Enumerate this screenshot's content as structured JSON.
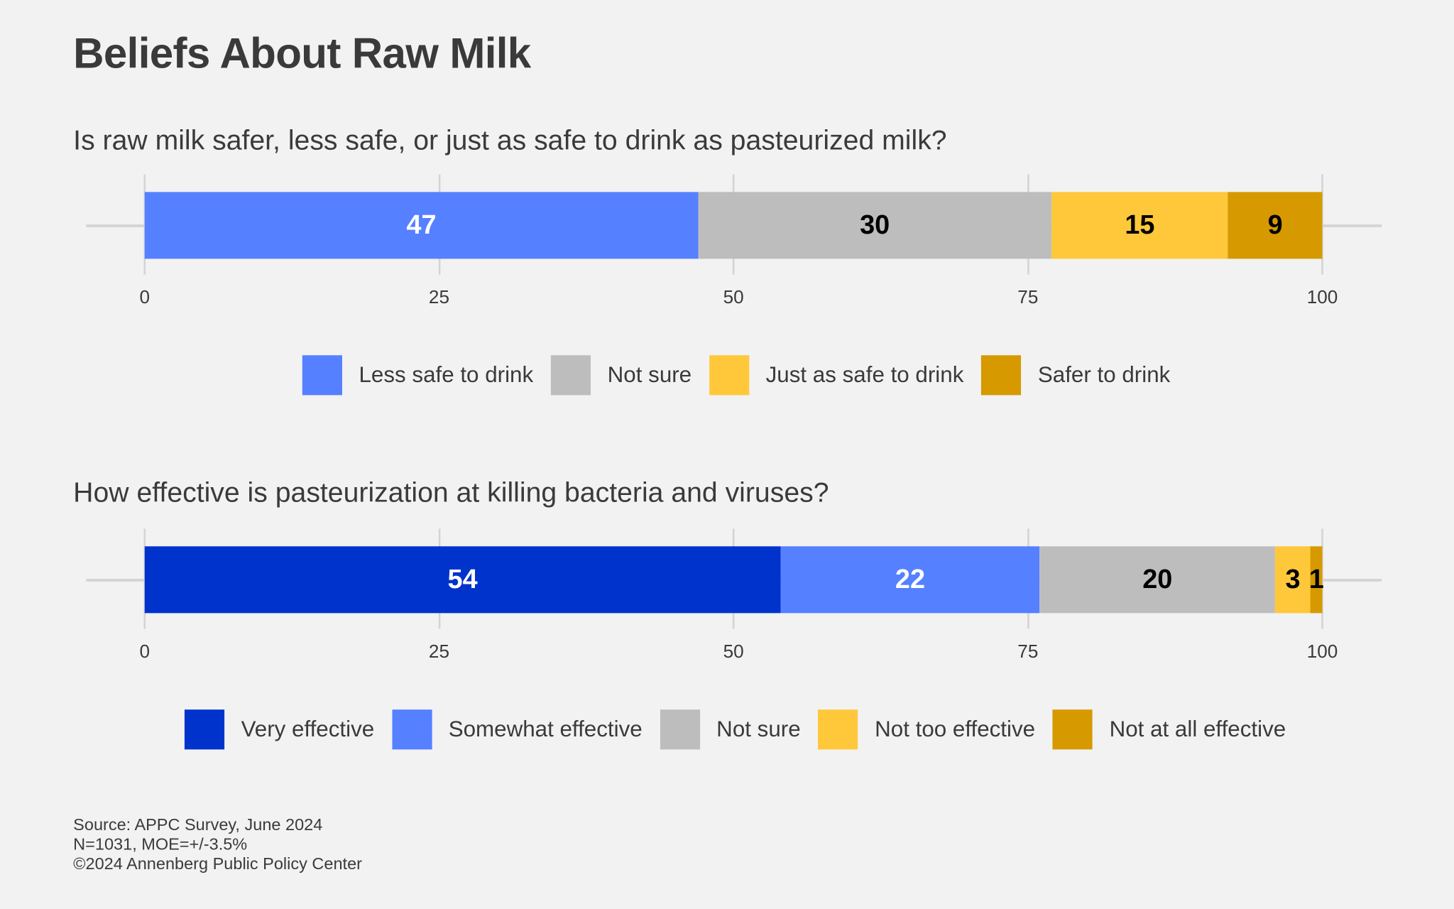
{
  "title": "Beliefs About Raw Milk",
  "chart_data": [
    {
      "type": "bar",
      "orientation": "horizontal-stacked",
      "title": "Is raw milk safer, less safe, or just as safe to drink as pasteurized milk?",
      "xlim": [
        0,
        100
      ],
      "ticks": [
        "0",
        "25",
        "50",
        "75",
        "100"
      ],
      "grid": true,
      "legend_position": "bottom",
      "series": [
        {
          "name": "Less safe to drink",
          "value": 47,
          "color": "#5580ff",
          "label_color": "#ffffff"
        },
        {
          "name": "Not sure",
          "value": 30,
          "color": "#bdbdbd",
          "label_color": "#000000"
        },
        {
          "name": "Just as safe to drink",
          "value": 15,
          "color": "#ffc83a",
          "label_color": "#000000"
        },
        {
          "name": "Safer to drink",
          "value": 9,
          "color": "#d69a00",
          "label_color": "#000000"
        }
      ]
    },
    {
      "type": "bar",
      "orientation": "horizontal-stacked",
      "title": "How effective is pasteurization at killing bacteria and viruses?",
      "xlim": [
        0,
        100
      ],
      "ticks": [
        "0",
        "25",
        "50",
        "75",
        "100"
      ],
      "grid": true,
      "legend_position": "bottom",
      "series": [
        {
          "name": "Very effective",
          "value": 54,
          "color": "#0033cc",
          "label_color": "#ffffff"
        },
        {
          "name": "Somewhat effective",
          "value": 22,
          "color": "#5580ff",
          "label_color": "#ffffff"
        },
        {
          "name": "Not sure",
          "value": 20,
          "color": "#bdbdbd",
          "label_color": "#000000"
        },
        {
          "name": "Not too effective",
          "value": 3,
          "color": "#ffc83a",
          "label_color": "#000000"
        },
        {
          "name": "Not at all effective",
          "value": 1,
          "color": "#d69a00",
          "label_color": "#000000"
        }
      ]
    }
  ],
  "footer": [
    "Source: APPC Survey, June 2024",
    "N=1031, MOE=+/-3.5%",
    "©2024 Annenberg Public Policy Center"
  ]
}
